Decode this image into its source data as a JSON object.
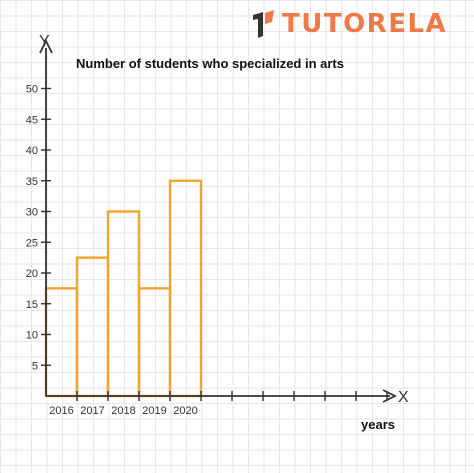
{
  "brand": {
    "logo_text": "TUTORELA",
    "logo_color": "#ee7a48"
  },
  "chart_data": {
    "type": "bar",
    "title": "Number of students who specialized in arts",
    "xlabel": "years",
    "x_axis_letter": "X",
    "y_axis_letter": "Y",
    "categories": [
      "2016",
      "2017",
      "2018",
      "2019",
      "2020"
    ],
    "values": [
      17.5,
      22.5,
      30,
      17.5,
      35
    ],
    "ylim": [
      0,
      50
    ],
    "y_ticks": [
      5,
      10,
      15,
      20,
      25,
      30,
      35,
      40,
      45,
      50
    ],
    "extra_x_ticks": 6,
    "bar_style": "outline",
    "bar_color": "#f0a530",
    "axis_color": "#333333",
    "grid": true,
    "legend": "none"
  }
}
